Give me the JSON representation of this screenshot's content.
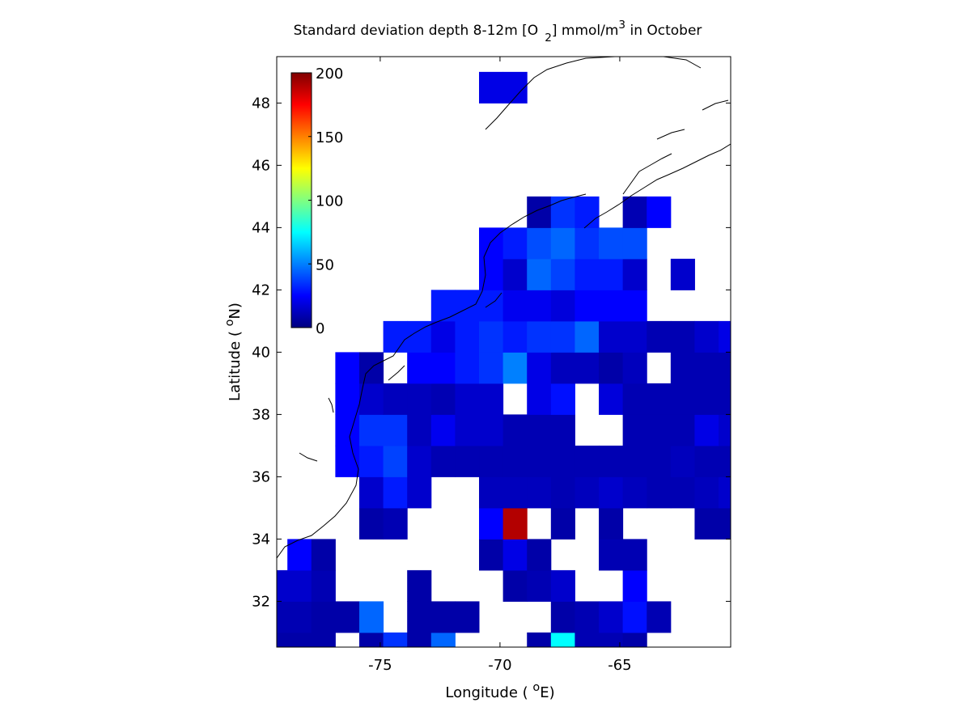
{
  "chart_data": {
    "type": "heatmap",
    "title": [
      {
        "text": "Standard deviation depth 8-12m [O"
      },
      {
        "text": "2",
        "shift": "sub"
      },
      {
        "text": "] mmol/m"
      },
      {
        "text": "3",
        "shift": "super"
      },
      {
        "text": " in October"
      }
    ],
    "x_label": [
      {
        "text": "Longitude ( "
      },
      {
        "text": "o",
        "shift": "super"
      },
      {
        "text": "E)"
      }
    ],
    "y_label": [
      {
        "text": "Latitude ( "
      },
      {
        "text": "o",
        "shift": "super"
      },
      {
        "text": "N)"
      }
    ],
    "x_edges": [
      -79.875,
      -78.875,
      -77.875,
      -76.875,
      -75.875,
      -74.875,
      -73.875,
      -72.875,
      -71.875,
      -70.875,
      -69.875,
      -68.875,
      -67.875,
      -66.875,
      -65.875,
      -64.875,
      -63.875,
      -62.875,
      -61.875,
      -60.875,
      -59.875
    ],
    "y_edges": [
      30,
      31,
      32,
      33,
      34,
      35,
      36,
      37,
      38,
      39,
      40,
      41,
      42,
      43,
      44,
      45,
      46,
      47,
      48,
      49
    ],
    "values": [
      [
        8,
        8,
        8,
        null,
        8,
        35,
        8,
        45,
        null,
        null,
        null,
        8,
        75,
        10,
        10,
        8,
        null,
        null,
        null,
        null
      ],
      [
        10,
        10,
        8,
        8,
        45,
        null,
        8,
        8,
        8,
        null,
        null,
        null,
        8,
        10,
        15,
        28,
        10,
        null,
        null,
        null
      ],
      [
        15,
        15,
        10,
        null,
        null,
        null,
        8,
        null,
        null,
        null,
        8,
        10,
        15,
        null,
        null,
        25,
        null,
        null,
        null,
        null
      ],
      [
        null,
        25,
        8,
        null,
        null,
        null,
        null,
        null,
        null,
        8,
        20,
        8,
        null,
        null,
        10,
        10,
        null,
        null,
        null,
        null
      ],
      [
        null,
        null,
        null,
        null,
        8,
        10,
        null,
        null,
        null,
        25,
        190,
        null,
        8,
        null,
        8,
        null,
        null,
        null,
        8,
        8
      ],
      [
        null,
        null,
        null,
        null,
        15,
        30,
        15,
        null,
        null,
        12,
        12,
        12,
        10,
        12,
        15,
        12,
        10,
        10,
        12,
        15
      ],
      [
        null,
        null,
        null,
        25,
        30,
        38,
        15,
        10,
        10,
        10,
        10,
        10,
        10,
        10,
        10,
        10,
        10,
        12,
        10,
        10
      ],
      [
        null,
        null,
        null,
        25,
        35,
        35,
        12,
        22,
        15,
        15,
        10,
        10,
        10,
        null,
        null,
        10,
        10,
        10,
        20,
        15
      ],
      [
        null,
        null,
        null,
        25,
        15,
        12,
        12,
        10,
        15,
        15,
        null,
        20,
        28,
        null,
        18,
        10,
        10,
        10,
        10,
        10
      ],
      [
        null,
        null,
        null,
        25,
        8,
        null,
        25,
        25,
        30,
        35,
        50,
        20,
        12,
        12,
        8,
        12,
        null,
        10,
        10,
        10
      ],
      [
        null,
        null,
        null,
        null,
        null,
        30,
        30,
        20,
        30,
        35,
        30,
        35,
        35,
        45,
        15,
        15,
        10,
        10,
        15,
        20
      ],
      [
        null,
        null,
        null,
        null,
        null,
        null,
        null,
        30,
        30,
        30,
        22,
        22,
        18,
        25,
        25,
        25,
        null,
        null,
        null,
        null
      ],
      [
        null,
        null,
        null,
        null,
        null,
        null,
        null,
        null,
        null,
        25,
        15,
        45,
        38,
        30,
        30,
        15,
        null,
        15,
        null,
        null
      ],
      [
        null,
        null,
        null,
        null,
        null,
        null,
        null,
        null,
        null,
        25,
        30,
        40,
        45,
        35,
        40,
        40,
        null,
        null,
        null,
        null
      ],
      [
        null,
        null,
        null,
        null,
        null,
        null,
        null,
        null,
        null,
        null,
        null,
        8,
        35,
        30,
        null,
        10,
        25,
        null,
        null,
        null
      ],
      [
        null,
        null,
        null,
        null,
        null,
        null,
        null,
        null,
        null,
        null,
        null,
        null,
        null,
        null,
        null,
        null,
        null,
        null,
        null,
        null
      ],
      [
        null,
        null,
        null,
        null,
        null,
        null,
        null,
        null,
        null,
        null,
        null,
        null,
        null,
        null,
        null,
        null,
        null,
        null,
        null,
        null
      ],
      [
        null,
        null,
        null,
        null,
        null,
        null,
        null,
        null,
        null,
        null,
        null,
        null,
        null,
        null,
        null,
        null,
        null,
        null,
        null,
        null
      ],
      [
        null,
        null,
        null,
        null,
        null,
        null,
        null,
        null,
        null,
        20,
        20,
        null,
        null,
        null,
        null,
        null,
        null,
        null,
        null,
        null
      ]
    ],
    "xlim": [
      -79.32,
      -60.37
    ],
    "ylim": [
      30.53,
      49.49
    ],
    "xticks": [
      -75,
      -70,
      -65
    ],
    "yticks": [
      32,
      34,
      36,
      38,
      40,
      42,
      44,
      46,
      48
    ],
    "colormap": "jet",
    "clim": [
      0,
      200
    ],
    "cticks": [
      0,
      50,
      100,
      150,
      200
    ]
  }
}
